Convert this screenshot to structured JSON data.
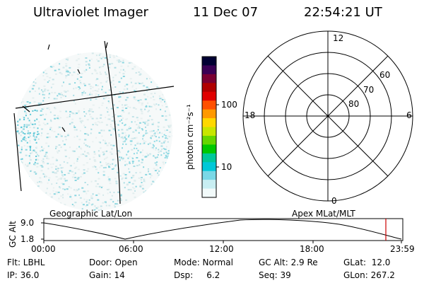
{
  "header": {
    "title": "Ultraviolet Imager",
    "date": "11 Dec 07",
    "time": "22:54:21 UT"
  },
  "left_panel": {
    "label": "Geographic Lat/Lon"
  },
  "colorbar": {
    "unit_label": "photon cm⁻²s⁻¹",
    "ticks": [
      "100",
      "10"
    ],
    "colors": [
      "#000033",
      "#3a0055",
      "#7a0033",
      "#b00000",
      "#e00000",
      "#ff5000",
      "#ff9900",
      "#ffd800",
      "#c8e600",
      "#66d600",
      "#00c800",
      "#00c89a",
      "#00c8d8",
      "#7ad8e6",
      "#c8eef2",
      "#f2fafa"
    ]
  },
  "polar_plot": {
    "label": "Apex MLat/MLT",
    "mlt_labels": {
      "top": "12",
      "left": "18",
      "right": "6",
      "bottom": "0"
    },
    "mlat_labels": [
      "60",
      "70",
      "80"
    ]
  },
  "altitude_plot": {
    "ylabel": "GC Alt",
    "yticks": [
      "9.0",
      "1.8"
    ],
    "xticks": [
      "00:00",
      "06:00",
      "12:00",
      "18:00",
      "23:59"
    ],
    "marker_color": "#cc0000"
  },
  "info": {
    "flt": "Flt: LBHL",
    "door": "Door: Open",
    "mode": "Mode: Normal",
    "gc_alt": "GC Alt: 2.9 Re",
    "glat": "GLat:  12.0",
    "ip": "IP: 36.0",
    "gain": "Gain: 14",
    "dsp": "Dsp:     6.2",
    "seq": "Seq: 39",
    "glon": "GLon: 267.2"
  }
}
